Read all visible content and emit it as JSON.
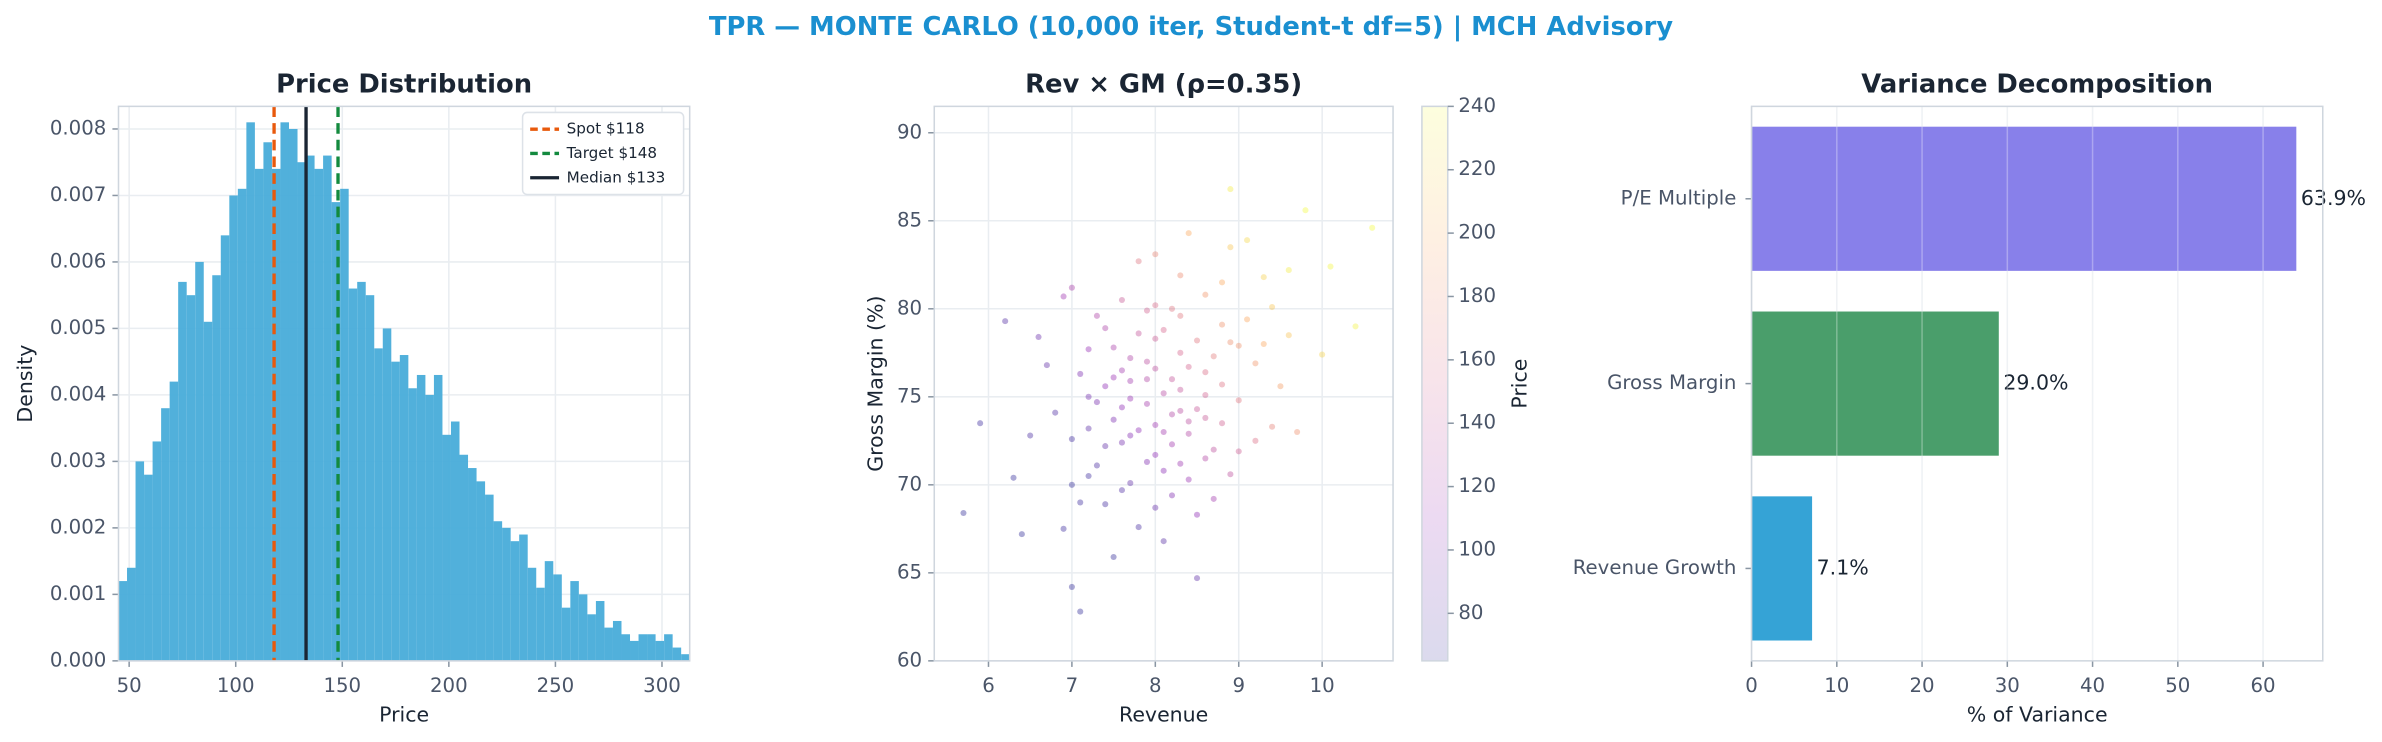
{
  "title": "TPR — MONTE CARLO (10,000 iter, Student-t df=5) | MCH Advisory",
  "chart_data": [
    {
      "type": "histogram",
      "title": "Price Distribution",
      "xlabel": "Price",
      "ylabel": "Density",
      "color": "#48acd9",
      "grid": true,
      "bins": [
        45,
        49,
        53,
        57,
        61,
        65,
        69,
        73,
        77,
        81,
        85,
        89,
        93,
        97,
        101,
        105,
        109,
        113,
        117,
        121,
        125,
        129,
        133,
        137,
        141,
        145,
        149,
        153,
        157,
        161,
        165,
        169,
        173,
        177,
        181,
        185,
        189,
        193,
        197,
        201,
        205,
        209,
        213,
        217,
        221,
        225,
        229,
        233,
        237,
        241,
        245,
        249,
        253,
        257,
        261,
        265,
        269,
        273,
        277,
        281,
        285,
        289,
        293,
        297,
        301,
        305,
        309,
        313
      ],
      "values": [
        0.0012,
        0.0014,
        0.003,
        0.0028,
        0.0033,
        0.0038,
        0.0042,
        0.0057,
        0.0055,
        0.006,
        0.0051,
        0.0058,
        0.0064,
        0.007,
        0.0071,
        0.0081,
        0.0074,
        0.0078,
        0.0074,
        0.0081,
        0.008,
        0.0075,
        0.0076,
        0.0074,
        0.0076,
        0.0069,
        0.0071,
        0.0056,
        0.0057,
        0.0055,
        0.0047,
        0.005,
        0.0045,
        0.0046,
        0.0041,
        0.0043,
        0.004,
        0.0043,
        0.0034,
        0.0036,
        0.0031,
        0.0029,
        0.0027,
        0.0025,
        0.0021,
        0.002,
        0.0018,
        0.0019,
        0.0014,
        0.0011,
        0.0015,
        0.0013,
        0.0008,
        0.0012,
        0.001,
        0.0007,
        0.0009,
        0.0005,
        0.0006,
        0.0004,
        0.0003,
        0.0004,
        0.0004,
        0.0003,
        0.0004,
        0.0002,
        0.0001
      ],
      "vlines": [
        {
          "name": "Spot $118",
          "value": 118,
          "color": "#e8590c",
          "style": "dashed"
        },
        {
          "name": "Target $148",
          "value": 148,
          "color": "#138a3e",
          "style": "dashed"
        },
        {
          "name": "Median $133",
          "value": 133,
          "color": "#1a2533",
          "style": "solid"
        }
      ],
      "legend": "upper right",
      "xlim": [
        45,
        313
      ],
      "xticks": [
        50,
        100,
        150,
        200,
        250,
        300
      ],
      "ylim": [
        0,
        0.00834
      ],
      "yticks": [
        {
          "value": 0,
          "label": "0.000"
        },
        {
          "value": 0.001,
          "label": "0.001"
        },
        {
          "value": 0.002,
          "label": "0.002"
        },
        {
          "value": 0.003,
          "label": "0.003"
        },
        {
          "value": 0.004,
          "label": "0.004"
        },
        {
          "value": 0.005,
          "label": "0.005"
        },
        {
          "value": 0.006,
          "label": "0.006"
        },
        {
          "value": 0.007,
          "label": "0.007"
        },
        {
          "value": 0.008,
          "label": "0.008"
        }
      ]
    },
    {
      "type": "scatter",
      "title": "Rev × GM (ρ=0.35)",
      "xlabel": "Revenue",
      "ylabel": "Gross Margin (%)",
      "grid": true,
      "colormap": [
        "#0d0887",
        "#7e03a8",
        "#cc4778",
        "#f89540",
        "#f0f921"
      ],
      "colorbar_label": "Price",
      "clim": [
        65,
        240
      ],
      "cticks": [
        80,
        100,
        120,
        140,
        160,
        180,
        200,
        220,
        240
      ],
      "x": [
        8.1,
        7.6,
        8.8,
        7.2,
        9.3,
        8.4,
        7.9,
        6.8,
        8.6,
        7.4,
        8.0,
        9.0,
        7.7,
        8.3,
        6.5,
        8.9,
        7.5,
        8.2,
        9.6,
        7.1,
        8.5,
        7.8,
        6.9,
        8.7,
        10.1,
        7.3,
        8.1,
        9.2,
        7.6,
        8.4,
        5.9,
        8.0,
        9.4,
        7.0,
        8.3,
        7.7,
        8.6,
        7.2,
        8.9,
        6.6,
        8.2,
        9.8,
        7.4,
        8.5,
        7.9,
        8.8,
        6.3,
        8.0,
        9.1,
        7.5,
        8.4,
        7.8,
        8.7,
        7.0,
        9.5,
        8.1,
        7.6,
        8.3,
        10.4,
        7.3,
        8.6,
        7.9,
        6.7,
        8.0,
        9.0,
        7.4,
        8.2,
        8.5,
        7.7,
        9.3,
        7.1,
        8.8,
        8.0,
        7.5,
        9.7,
        6.2,
        8.3,
        7.8,
        8.6,
        7.2,
        8.9,
        8.1,
        7.6,
        9.2,
        7.0,
        8.4,
        7.9,
        8.7,
        6.9,
        10.0,
        8.2,
        7.3,
        8.0,
        9.1,
        7.7,
        8.5,
        6.4,
        8.3,
        7.5,
        8.8,
        7.1,
        9.4,
        7.9,
        8.1,
        8.6,
        7.4,
        10.6,
        8.0,
        7.2,
        9.0,
        7.8,
        8.4,
        5.7,
        8.9,
        7.6,
        8.2,
        7.0,
        9.6,
        8.3,
        7.7
      ],
      "y": [
        75.2,
        72.4,
        79.1,
        70.5,
        81.8,
        73.6,
        77.0,
        74.1,
        76.4,
        68.9,
        80.2,
        74.8,
        75.9,
        71.2,
        72.8,
        83.5,
        77.8,
        69.4,
        78.5,
        76.3,
        78.2,
        73.1,
        67.5,
        72.0,
        82.4,
        79.6,
        66.8,
        76.9,
        74.4,
        84.3,
        73.5,
        71.7,
        73.3,
        81.2,
        77.5,
        70.1,
        80.8,
        75.0,
        70.6,
        78.4,
        74.0,
        85.6,
        72.2,
        68.3,
        79.9,
        75.7,
        70.4,
        76.6,
        79.4,
        65.9,
        72.9,
        82.7,
        77.3,
        72.6,
        75.6,
        78.8,
        69.7,
        75.4,
        79.0,
        74.7,
        73.8,
        71.3,
        76.8,
        83.1,
        71.9,
        78.9,
        76.0,
        64.7,
        74.9,
        78.0,
        69.0,
        81.5,
        73.4,
        76.1,
        73.0,
        79.3,
        79.6,
        67.6,
        75.1,
        77.7,
        86.8,
        70.8,
        80.5,
        72.5,
        64.2,
        76.7,
        74.6,
        69.2,
        80.7,
        77.4,
        72.3,
        71.1,
        78.3,
        83.9,
        77.2,
        74.3,
        67.2,
        81.9,
        73.7,
        73.5,
        62.8,
        80.1,
        76.0,
        73.0,
        71.5,
        75.6,
        84.6,
        68.7,
        73.2,
        77.9,
        78.6,
        70.3,
        68.4,
        78.1,
        76.5,
        80.0,
        70.0,
        82.2,
        74.2,
        72.8
      ],
      "c": [
        131,
        94,
        183,
        70,
        219,
        134,
        134,
        78,
        158,
        72,
        157,
        165,
        119,
        115,
        76,
        213,
        123,
        100,
        211,
        98,
        165,
        107,
        70,
        136,
        238,
        126,
        81,
        185,
        106,
        198,
        70,
        106,
        172,
        123,
        153,
        85,
        185,
        94,
        136,
        90,
        128,
        240,
        85,
        106,
        151,
        162,
        67,
        136,
        196,
        66,
        129,
        164,
        168,
        72,
        190,
        153,
        78,
        140,
        236,
        96,
        143,
        100,
        85,
        175,
        147,
        125,
        140,
        84,
        113,
        196,
        70,
        197,
        116,
        113,
        182,
        80,
        166,
        74,
        151,
        110,
        233,
        105,
        143,
        159,
        66,
        152,
        120,
        119,
        116,
        220,
        118,
        75,
        146,
        223,
        127,
        142,
        65,
        179,
        98,
        149,
        65,
        213,
        128,
        118,
        129,
        106,
        240,
        88,
        83,
        183,
        140,
        114,
        65,
        181,
        119,
        164,
        66,
        233,
        133,
        101
      ],
      "xlim": [
        5.35,
        10.85
      ],
      "xticks": [
        6,
        7,
        8,
        9,
        10
      ],
      "ylim": [
        60,
        91.5
      ],
      "yticks": [
        60,
        65,
        70,
        75,
        80,
        85,
        90
      ]
    },
    {
      "type": "barh",
      "title": "Variance Decomposition",
      "xlabel": "% of Variance",
      "grid": true,
      "categories": [
        "Revenue Growth",
        "Gross Margin",
        "P/E Multiple"
      ],
      "values": [
        7.1,
        29.0,
        63.9
      ],
      "value_labels": [
        "7.1%",
        "29.0%",
        "63.9%"
      ],
      "colors": [
        "#35a3d6",
        "#4a9e6b",
        "#8880ea"
      ],
      "xlim": [
        0,
        67
      ],
      "xticks": [
        0,
        10,
        20,
        30,
        40,
        50,
        60
      ]
    }
  ]
}
